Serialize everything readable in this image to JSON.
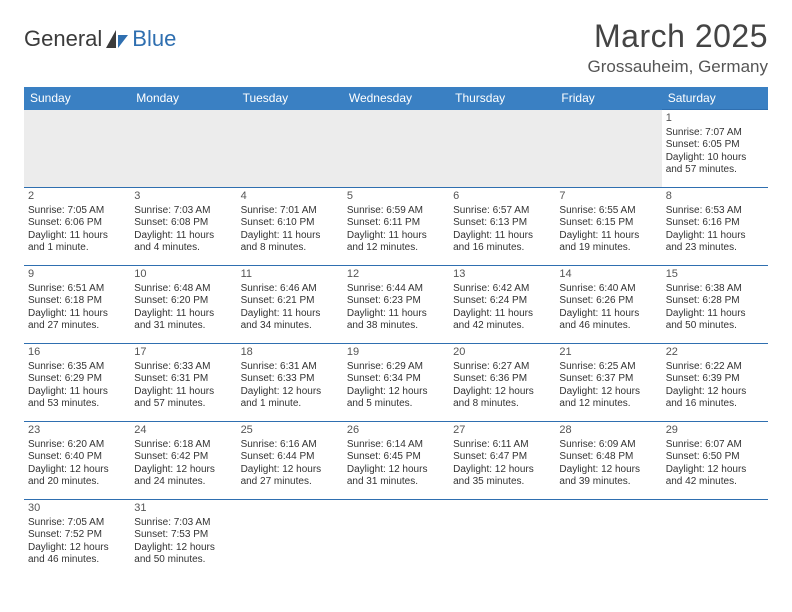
{
  "logo": {
    "text1": "General",
    "text2": "Blue"
  },
  "title": "March 2025",
  "location": "Grossauheim, Germany",
  "colors": {
    "header_bg": "#3a80c3",
    "header_fg": "#ffffff",
    "cell_border": "#2f6fb0",
    "lead_bg": "#ececec",
    "logo_gray": "#3b3b3b",
    "logo_blue": "#2f6fb0"
  },
  "weekdays": [
    "Sunday",
    "Monday",
    "Tuesday",
    "Wednesday",
    "Thursday",
    "Friday",
    "Saturday"
  ],
  "lead_blank": 6,
  "days": [
    {
      "n": "1",
      "sunrise": "7:07 AM",
      "sunset": "6:05 PM",
      "daylight": "10 hours and 57 minutes."
    },
    {
      "n": "2",
      "sunrise": "7:05 AM",
      "sunset": "6:06 PM",
      "daylight": "11 hours and 1 minute."
    },
    {
      "n": "3",
      "sunrise": "7:03 AM",
      "sunset": "6:08 PM",
      "daylight": "11 hours and 4 minutes."
    },
    {
      "n": "4",
      "sunrise": "7:01 AM",
      "sunset": "6:10 PM",
      "daylight": "11 hours and 8 minutes."
    },
    {
      "n": "5",
      "sunrise": "6:59 AM",
      "sunset": "6:11 PM",
      "daylight": "11 hours and 12 minutes."
    },
    {
      "n": "6",
      "sunrise": "6:57 AM",
      "sunset": "6:13 PM",
      "daylight": "11 hours and 16 minutes."
    },
    {
      "n": "7",
      "sunrise": "6:55 AM",
      "sunset": "6:15 PM",
      "daylight": "11 hours and 19 minutes."
    },
    {
      "n": "8",
      "sunrise": "6:53 AM",
      "sunset": "6:16 PM",
      "daylight": "11 hours and 23 minutes."
    },
    {
      "n": "9",
      "sunrise": "6:51 AM",
      "sunset": "6:18 PM",
      "daylight": "11 hours and 27 minutes."
    },
    {
      "n": "10",
      "sunrise": "6:48 AM",
      "sunset": "6:20 PM",
      "daylight": "11 hours and 31 minutes."
    },
    {
      "n": "11",
      "sunrise": "6:46 AM",
      "sunset": "6:21 PM",
      "daylight": "11 hours and 34 minutes."
    },
    {
      "n": "12",
      "sunrise": "6:44 AM",
      "sunset": "6:23 PM",
      "daylight": "11 hours and 38 minutes."
    },
    {
      "n": "13",
      "sunrise": "6:42 AM",
      "sunset": "6:24 PM",
      "daylight": "11 hours and 42 minutes."
    },
    {
      "n": "14",
      "sunrise": "6:40 AM",
      "sunset": "6:26 PM",
      "daylight": "11 hours and 46 minutes."
    },
    {
      "n": "15",
      "sunrise": "6:38 AM",
      "sunset": "6:28 PM",
      "daylight": "11 hours and 50 minutes."
    },
    {
      "n": "16",
      "sunrise": "6:35 AM",
      "sunset": "6:29 PM",
      "daylight": "11 hours and 53 minutes."
    },
    {
      "n": "17",
      "sunrise": "6:33 AM",
      "sunset": "6:31 PM",
      "daylight": "11 hours and 57 minutes."
    },
    {
      "n": "18",
      "sunrise": "6:31 AM",
      "sunset": "6:33 PM",
      "daylight": "12 hours and 1 minute."
    },
    {
      "n": "19",
      "sunrise": "6:29 AM",
      "sunset": "6:34 PM",
      "daylight": "12 hours and 5 minutes."
    },
    {
      "n": "20",
      "sunrise": "6:27 AM",
      "sunset": "6:36 PM",
      "daylight": "12 hours and 8 minutes."
    },
    {
      "n": "21",
      "sunrise": "6:25 AM",
      "sunset": "6:37 PM",
      "daylight": "12 hours and 12 minutes."
    },
    {
      "n": "22",
      "sunrise": "6:22 AM",
      "sunset": "6:39 PM",
      "daylight": "12 hours and 16 minutes."
    },
    {
      "n": "23",
      "sunrise": "6:20 AM",
      "sunset": "6:40 PM",
      "daylight": "12 hours and 20 minutes."
    },
    {
      "n": "24",
      "sunrise": "6:18 AM",
      "sunset": "6:42 PM",
      "daylight": "12 hours and 24 minutes."
    },
    {
      "n": "25",
      "sunrise": "6:16 AM",
      "sunset": "6:44 PM",
      "daylight": "12 hours and 27 minutes."
    },
    {
      "n": "26",
      "sunrise": "6:14 AM",
      "sunset": "6:45 PM",
      "daylight": "12 hours and 31 minutes."
    },
    {
      "n": "27",
      "sunrise": "6:11 AM",
      "sunset": "6:47 PM",
      "daylight": "12 hours and 35 minutes."
    },
    {
      "n": "28",
      "sunrise": "6:09 AM",
      "sunset": "6:48 PM",
      "daylight": "12 hours and 39 minutes."
    },
    {
      "n": "29",
      "sunrise": "6:07 AM",
      "sunset": "6:50 PM",
      "daylight": "12 hours and 42 minutes."
    },
    {
      "n": "30",
      "sunrise": "7:05 AM",
      "sunset": "7:52 PM",
      "daylight": "12 hours and 46 minutes."
    },
    {
      "n": "31",
      "sunrise": "7:03 AM",
      "sunset": "7:53 PM",
      "daylight": "12 hours and 50 minutes."
    }
  ],
  "labels": {
    "sunrise_prefix": "Sunrise: ",
    "sunset_prefix": "Sunset: ",
    "daylight_prefix": "Daylight: "
  }
}
